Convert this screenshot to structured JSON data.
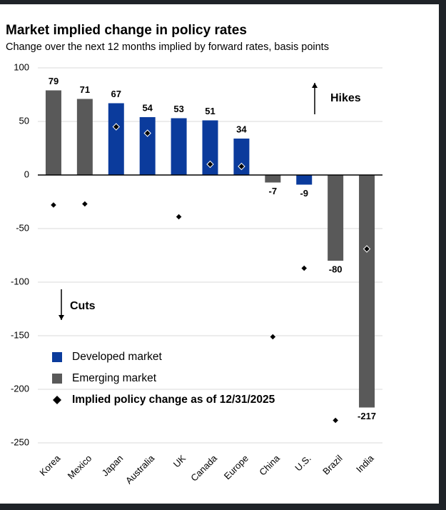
{
  "chart_data": {
    "type": "bar",
    "title": "Market implied change in policy rates",
    "subtitle": "Change over the next 12 months implied by forward rates, basis points",
    "categories": [
      "Korea",
      "Mexico",
      "Japan",
      "Australia",
      "UK",
      "Canada",
      "Europe",
      "China",
      "U.S.",
      "Brazil",
      "India"
    ],
    "series": [
      {
        "name": "Developed market",
        "color": "#0b3b9c",
        "values": [
          null,
          null,
          67,
          54,
          53,
          51,
          34,
          null,
          -9,
          null,
          null
        ]
      },
      {
        "name": "Emerging market",
        "color": "#595959",
        "values": [
          79,
          71,
          null,
          null,
          null,
          null,
          null,
          -7,
          null,
          -80,
          -217
        ]
      },
      {
        "name": "Implied policy change as of 12/31/2025",
        "color": "#000000",
        "marker": "diamond",
        "values": [
          -28,
          -27,
          45,
          39,
          -39,
          10,
          8,
          -151,
          -87,
          -229,
          -69
        ]
      }
    ],
    "ylim": [
      -250,
      100
    ],
    "yticks": [
      -250,
      -200,
      -150,
      -100,
      -50,
      0,
      50,
      100
    ],
    "grid": true,
    "annotations": [
      {
        "text": "Hikes",
        "direction": "up"
      },
      {
        "text": "Cuts",
        "direction": "down"
      }
    ]
  }
}
